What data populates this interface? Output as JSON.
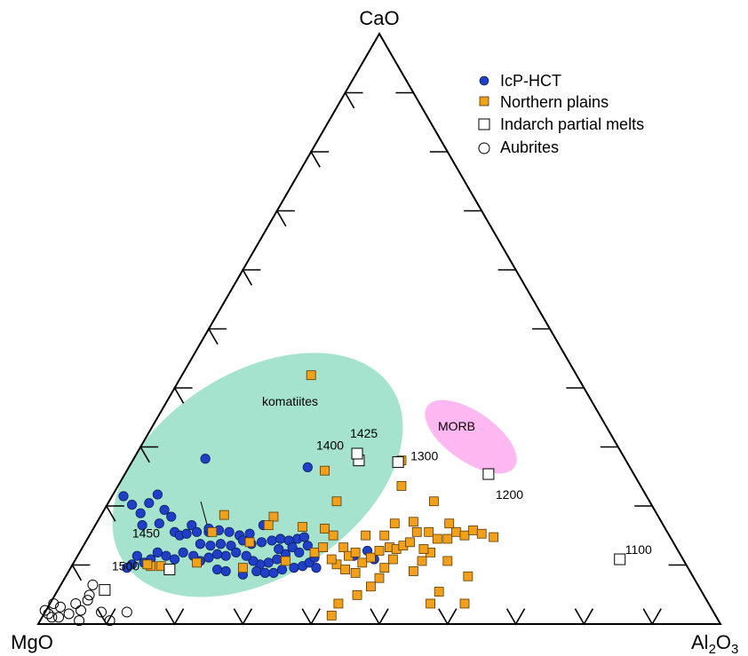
{
  "chart_data": {
    "type": "scatter",
    "subtype": "ternary",
    "vertices": {
      "top": "CaO",
      "left": "MgO",
      "right": "Al2O3"
    },
    "vertex_labels": {
      "top": "CaO",
      "left": "MgO",
      "right_main": "Al",
      "right_sub1": "2",
      "right_mid": "O",
      "right_sub2": "3"
    },
    "ticks_per_side": 9,
    "legend": {
      "placement": "top-right",
      "entries": [
        {
          "name": "IcP-HCT",
          "marker": "circle",
          "fill": "#1f3fc8"
        },
        {
          "name": "Northern plains",
          "marker": "square",
          "fill": "#f2a01c"
        },
        {
          "name": "Indarch partial melts",
          "marker": "square",
          "fill": "#ffffff"
        },
        {
          "name": "Aubrites",
          "marker": "circle",
          "fill": "#ffffff"
        }
      ]
    },
    "regions": [
      {
        "name": "komatiites",
        "color": "#a6e3cf"
      },
      {
        "name": "MORB",
        "color": "#ffb8f2"
      }
    ],
    "series": [
      {
        "name": "IcP-HCT",
        "points": [
          [
            0.5,
            0.75
          ],
          [
            0.55,
            0.7
          ],
          [
            0.6,
            0.65
          ],
          [
            0.65,
            0.71
          ],
          [
            0.7,
            0.76
          ],
          [
            0.74,
            0.67
          ],
          [
            0.78,
            0.63
          ],
          [
            0.61,
            0.58
          ],
          [
            0.71,
            0.59
          ],
          [
            0.8,
            0.54
          ],
          [
            0.83,
            0.52
          ],
          [
            0.87,
            0.53
          ],
          [
            0.9,
            0.58
          ],
          [
            0.93,
            0.54
          ],
          [
            1.0,
            0.54
          ],
          [
            1.06,
            0.55
          ],
          [
            1.12,
            0.54
          ],
          [
            1.18,
            0.52
          ],
          [
            0.95,
            0.47
          ],
          [
            1.01,
            0.46
          ],
          [
            1.07,
            0.47
          ],
          [
            1.13,
            0.46
          ],
          [
            1.2,
            0.49
          ],
          [
            1.25,
            0.47
          ],
          [
            1.31,
            0.48
          ],
          [
            1.37,
            0.49
          ],
          [
            1.42,
            0.5
          ],
          [
            1.47,
            0.49
          ],
          [
            1.52,
            0.5
          ],
          [
            1.56,
            0.51
          ],
          [
            1.49,
            0.45
          ],
          [
            1.53,
            0.42
          ],
          [
            1.58,
            0.46
          ],
          [
            1.45,
            0.41
          ],
          [
            1.4,
            0.38
          ],
          [
            1.35,
            0.36
          ],
          [
            1.3,
            0.35
          ],
          [
            1.26,
            0.37
          ],
          [
            1.22,
            0.4
          ],
          [
            1.16,
            0.42
          ],
          [
            1.1,
            0.4
          ],
          [
            1.05,
            0.41
          ],
          [
            1.0,
            0.39
          ],
          [
            0.95,
            0.37
          ],
          [
            0.91,
            0.4
          ],
          [
            0.85,
            0.42
          ],
          [
            0.8,
            0.38
          ],
          [
            0.75,
            0.4
          ],
          [
            0.7,
            0.42
          ],
          [
            0.66,
            0.38
          ],
          [
            0.62,
            0.36
          ],
          [
            0.58,
            0.4
          ],
          [
            0.55,
            0.35
          ],
          [
            0.52,
            0.33
          ],
          [
            1.05,
            0.32
          ],
          [
            1.1,
            0.31
          ],
          [
            1.2,
            0.29
          ],
          [
            1.28,
            0.31
          ],
          [
            1.33,
            0.3
          ],
          [
            1.38,
            0.3
          ],
          [
            1.43,
            0.32
          ],
          [
            1.5,
            0.33
          ],
          [
            1.55,
            0.34
          ],
          [
            1.59,
            0.36
          ],
          [
            1.62,
            0.39
          ],
          [
            1.63,
            0.33
          ],
          [
            1.85,
            0.4
          ],
          [
            1.93,
            0.43
          ],
          [
            1.97,
            0.38
          ],
          [
            1.58,
            0.92
          ],
          [
            0.98,
            0.97
          ],
          [
            1.24,
            0.53
          ],
          [
            1.32,
            0.58
          ],
          [
            1.41,
            0.44
          ],
          [
            1.0,
            0.56
          ]
        ]
      },
      {
        "name": "Northern plains",
        "points": [
          [
            1.68,
            0.56
          ],
          [
            1.73,
            0.52
          ],
          [
            1.79,
            0.45
          ],
          [
            1.82,
            0.4
          ],
          [
            1.86,
            0.42
          ],
          [
            1.9,
            0.36
          ],
          [
            1.95,
            0.39
          ],
          [
            2.0,
            0.43
          ],
          [
            2.06,
            0.45
          ],
          [
            2.1,
            0.44
          ],
          [
            2.14,
            0.46
          ],
          [
            2.18,
            0.48
          ],
          [
            2.22,
            0.54
          ],
          [
            2.29,
            0.54
          ],
          [
            2.34,
            0.5
          ],
          [
            2.4,
            0.5
          ],
          [
            2.45,
            0.54
          ],
          [
            2.5,
            0.52
          ],
          [
            2.55,
            0.55
          ],
          [
            2.6,
            0.53
          ],
          [
            2.67,
            0.51
          ],
          [
            1.75,
            0.35
          ],
          [
            1.8,
            0.32
          ],
          [
            2.03,
            0.33
          ],
          [
            2.08,
            0.38
          ],
          [
            2.2,
            0.31
          ],
          [
            2.25,
            0.37
          ],
          [
            2.3,
            0.42
          ],
          [
            2.4,
            0.37
          ],
          [
            1.86,
            0.3
          ],
          [
            2.0,
            0.27
          ],
          [
            1.95,
            0.22
          ],
          [
            2.35,
            0.19
          ],
          [
            2.5,
            0.12
          ],
          [
            2.3,
            0.12
          ],
          [
            2.52,
            0.28
          ],
          [
            1.87,
            0.17
          ],
          [
            1.76,
            0.12
          ],
          [
            2.03,
            0.52
          ],
          [
            2.2,
            0.6
          ],
          [
            2.32,
            0.72
          ],
          [
            2.41,
            0.59
          ],
          [
            1.75,
            0.72
          ],
          [
            1.38,
            0.63
          ],
          [
            1.55,
            0.57
          ],
          [
            1.62,
            0.42
          ],
          [
            1.67,
            0.45
          ],
          [
            1.72,
            0.38
          ],
          [
            1.92,
            0.52
          ],
          [
            1.68,
            0.9
          ],
          [
            1.35,
            0.58
          ],
          [
            1.45,
            0.37
          ],
          [
            2.13,
            0.81
          ],
          [
            2.13,
            0.96
          ],
          [
            1.6,
            1.46
          ],
          [
            1.72,
            0.05
          ],
          [
            2.09,
            0.59
          ],
          [
            2.26,
            0.44
          ],
          [
            1.24,
            0.48
          ],
          [
            1.2,
            0.33
          ],
          [
            1.09,
            0.64
          ],
          [
            1.02,
            0.54
          ],
          [
            0.93,
            0.36
          ],
          [
            0.72,
            0.34
          ],
          [
            0.66,
            0.34
          ],
          [
            0.64,
            0.35
          ]
        ]
      },
      {
        "name": "Indarch partial melts",
        "labels": [
          "1500",
          "1450",
          "1400",
          "1425",
          "1300",
          "1200",
          "1100"
        ],
        "points": [
          [
            0.39,
            0.2
          ],
          [
            0.77,
            0.32
          ],
          [
            1.88,
            0.96
          ],
          [
            1.87,
            1.0
          ],
          [
            2.11,
            0.95
          ],
          [
            2.64,
            0.88
          ],
          [
            3.41,
            0.38
          ]
        ]
      },
      {
        "name": "Aubrites",
        "points": [
          [
            0.04,
            0.08
          ],
          [
            0.06,
            0.06
          ],
          [
            0.08,
            0.04
          ],
          [
            0.12,
            0.04
          ],
          [
            0.18,
            0.06
          ],
          [
            0.24,
            0.02
          ],
          [
            0.25,
            0.08
          ],
          [
            0.22,
            0.12
          ],
          [
            0.3,
            0.17
          ],
          [
            0.32,
            0.23
          ],
          [
            0.37,
            0.07
          ],
          [
            0.42,
            0.02
          ],
          [
            0.52,
            0.07
          ],
          [
            0.13,
            0.1
          ],
          [
            0.09,
            0.12
          ],
          [
            0.29,
            0.14
          ]
        ]
      }
    ]
  }
}
